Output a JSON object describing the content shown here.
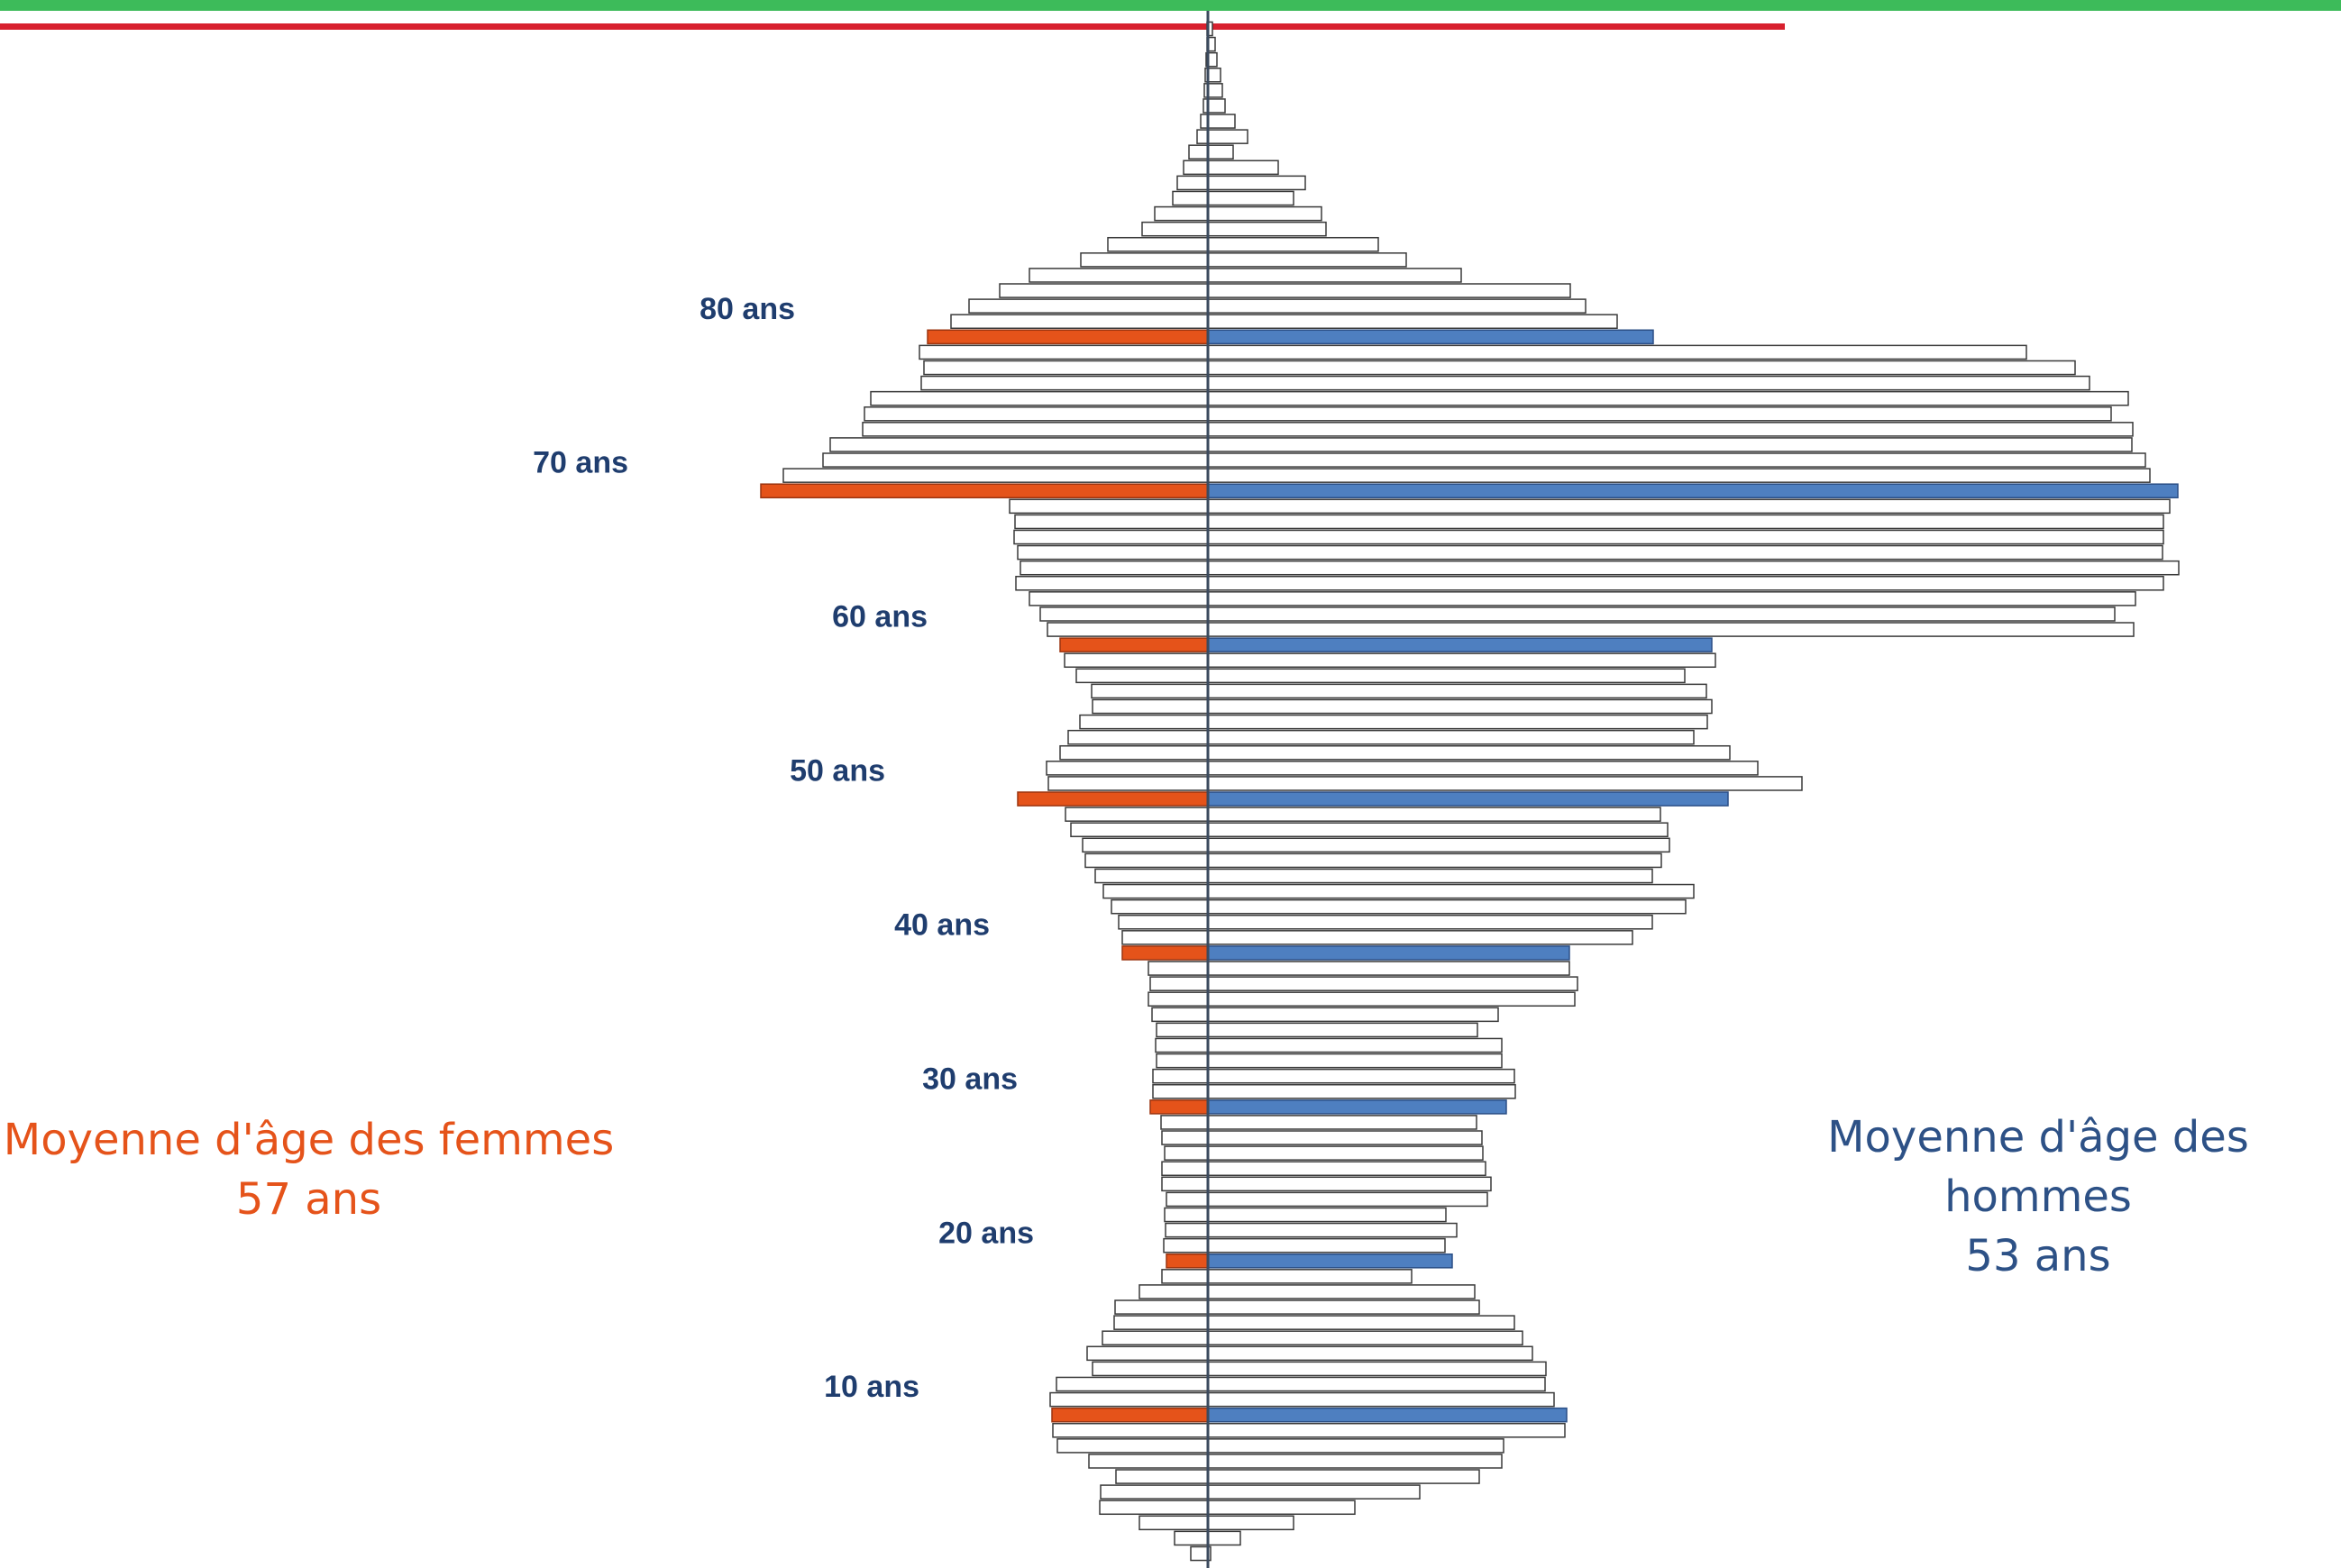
{
  "labels": {
    "female_mean_title": "Moyenne d'âge des femmes",
    "female_mean_value": "57 ans",
    "male_mean_title": "Moyenne d'âge des hommes",
    "male_mean_value": "53 ans"
  },
  "colors": {
    "female_highlight": "#e5531a",
    "male_highlight": "#4e7fc0",
    "bar_outline": "#3a3a3a",
    "axis": "#3b4a5e",
    "top_line_green": "#3dbb5a",
    "top_line_red": "#d8202e",
    "age_label": "#1f3d6e"
  },
  "chart_data": {
    "type": "bar",
    "orientation": "horizontal-pyramid",
    "title": "",
    "xlabel": "",
    "ylabel": "",
    "ages": [
      1,
      2,
      3,
      4,
      5,
      6,
      7,
      8,
      9,
      10,
      11,
      12,
      13,
      14,
      15,
      16,
      17,
      18,
      19,
      20,
      21,
      22,
      23,
      24,
      25,
      26,
      27,
      28,
      29,
      30,
      31,
      32,
      33,
      34,
      35,
      36,
      37,
      38,
      39,
      40,
      41,
      42,
      43,
      44,
      45,
      46,
      47,
      48,
      49,
      50,
      51,
      52,
      53,
      54,
      55,
      56,
      57,
      58,
      59,
      60,
      61,
      62,
      63,
      64,
      65,
      66,
      67,
      68,
      69,
      70,
      71,
      72,
      73,
      74,
      75,
      76,
      77,
      78,
      79,
      80,
      81,
      82,
      83,
      84,
      85,
      86,
      87,
      88,
      89,
      90,
      91,
      92,
      93,
      94,
      95,
      96,
      97,
      98,
      99,
      100
    ],
    "highlighted_ages": [
      10,
      20,
      30,
      40,
      50,
      60,
      70,
      80
    ],
    "tick_labels": [
      {
        "age": 10,
        "text": "10 ans"
      },
      {
        "age": 20,
        "text": "20 ans"
      },
      {
        "age": 30,
        "text": "30 ans"
      },
      {
        "age": 40,
        "text": "40 ans"
      },
      {
        "age": 50,
        "text": "50 ans"
      },
      {
        "age": 60,
        "text": "60 ans"
      },
      {
        "age": 70,
        "text": "70 ans"
      },
      {
        "age": 80,
        "text": "80 ans"
      }
    ],
    "series": [
      {
        "values": [
          19,
          37,
          76,
          120,
          119,
          102,
          132,
          167,
          172,
          173,
          175,
          168,
          128,
          134,
          117,
          104,
          103,
          76,
          51,
          46,
          49,
          47,
          48,
          46,
          51,
          51,
          48,
          51,
          52,
          64,
          61,
          61,
          57,
          58,
          57,
          62,
          66,
          64,
          66,
          95,
          95,
          99,
          107,
          116,
          125,
          136,
          139,
          152,
          158,
          211,
          177,
          179,
          164,
          155,
          142,
          128,
          129,
          146,
          159,
          164,
          178,
          186,
          198,
          213,
          208,
          211,
          215,
          214,
          220,
          496,
          471,
          427,
          419,
          383,
          381,
          374,
          318,
          315,
          320,
          311,
          285,
          265,
          231,
          198,
          141,
          111,
          73,
          59,
          39,
          34,
          27,
          21,
          12,
          8,
          5,
          4,
          3,
          2,
          1,
          1
        ]
      },
      {
        "values": [
          3,
          36,
          95,
          163,
          235,
          301,
          326,
          328,
          396,
          398,
          384,
          374,
          375,
          360,
          349,
          340,
          301,
          296,
          226,
          271,
          263,
          276,
          264,
          310,
          314,
          308,
          305,
          304,
          298,
          331,
          341,
          340,
          326,
          326,
          299,
          322,
          407,
          410,
          401,
          401,
          471,
          493,
          530,
          539,
          493,
          503,
          512,
          510,
          502,
          577,
          659,
          610,
          579,
          539,
          554,
          559,
          553,
          529,
          563,
          559,
          1027,
          1006,
          1029,
          1060,
          1077,
          1059,
          1060,
          1060,
          1067,
          1076,
          1045,
          1040,
          1025,
          1026,
          1002,
          1021,
          978,
          962,
          908,
          494,
          454,
          419,
          402,
          281,
          220,
          189,
          131,
          126,
          95,
          108,
          78,
          28,
          44,
          30,
          19,
          16,
          14,
          10,
          8,
          5
        ]
      }
    ]
  }
}
